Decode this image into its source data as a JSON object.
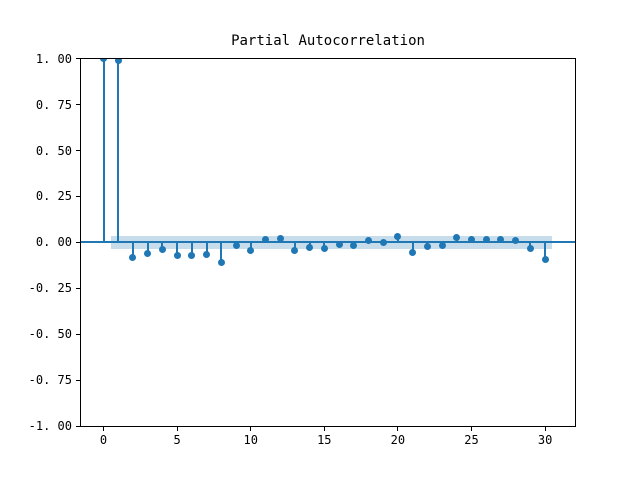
{
  "figure": {
    "background": "#ffffff"
  },
  "chart_data": {
    "type": "scatter",
    "variant": "stem-plot (partial autocorrelation function)",
    "title": "Partial Autocorrelation",
    "xlabel": "",
    "ylabel": "",
    "x": [
      0,
      1,
      2,
      3,
      4,
      5,
      6,
      7,
      8,
      9,
      10,
      11,
      12,
      13,
      14,
      15,
      16,
      17,
      18,
      19,
      20,
      21,
      22,
      23,
      24,
      25,
      26,
      27,
      28,
      29,
      30
    ],
    "values": [
      1.0,
      0.99,
      -0.084,
      -0.059,
      -0.036,
      -0.071,
      -0.071,
      -0.068,
      -0.112,
      -0.016,
      -0.043,
      0.014,
      0.023,
      -0.044,
      -0.027,
      -0.035,
      -0.009,
      -0.015,
      0.008,
      0.002,
      0.033,
      -0.057,
      -0.021,
      -0.019,
      0.028,
      0.018,
      0.015,
      0.018,
      0.008,
      -0.034,
      -0.094
    ],
    "confidence_band": {
      "low": -0.036,
      "high": 0.036,
      "x_start": 0.5,
      "x_end": 30.5
    },
    "xlim": [
      -1.53,
      32.03
    ],
    "ylim": [
      -1.0,
      1.0
    ],
    "x_ticks": {
      "values": [
        0,
        5,
        10,
        15,
        20,
        25,
        30
      ],
      "labels": [
        "0",
        "5",
        "10",
        "15",
        "20",
        "25",
        "30"
      ]
    },
    "y_ticks": {
      "values": [
        1.0,
        0.75,
        0.5,
        0.25,
        0.0,
        -0.25,
        -0.5,
        -0.75,
        -1.0
      ],
      "labels": [
        "1. 00",
        "0. 75",
        "0. 50",
        "0. 25",
        "0. 00",
        "-0. 25",
        "-0. 50",
        "-0. 75",
        "-1. 00"
      ]
    },
    "grid": false,
    "legend": false,
    "colors": {
      "stem": "#1f77b4",
      "marker": "#1f77b4",
      "zero_line": "#1f77b4",
      "band": "#1f77b4",
      "band_alpha": 0.25,
      "spine": "#000000",
      "tick": "#000000",
      "text": "#000000"
    }
  }
}
